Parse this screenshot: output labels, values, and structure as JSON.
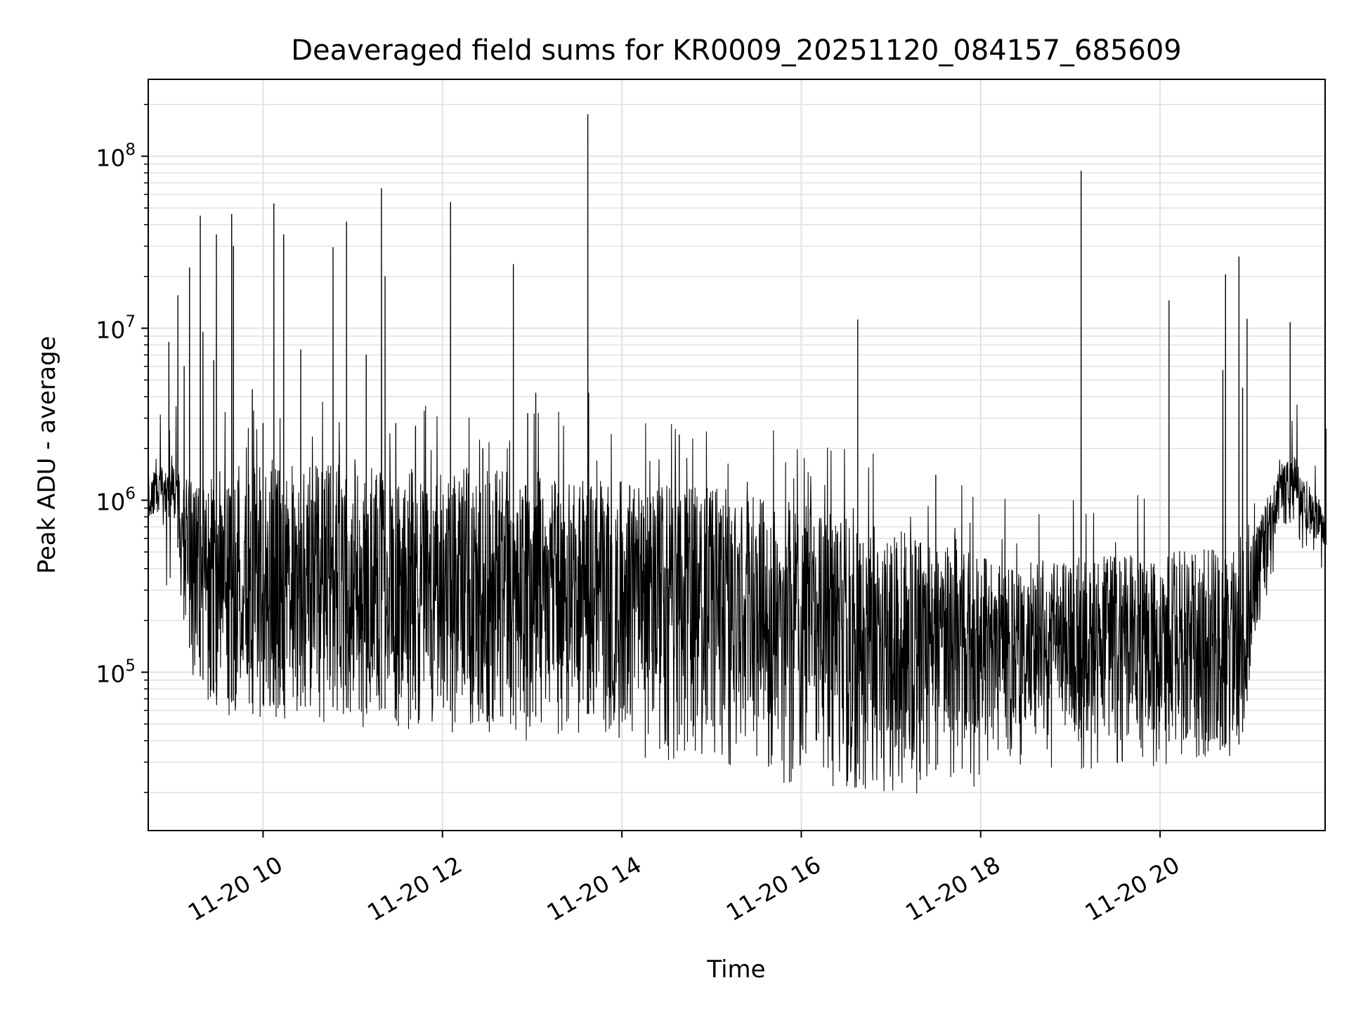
{
  "chart_data": {
    "type": "line",
    "title": "Deaveraged field sums for KR0009_20251120_084157_685609",
    "xlabel": "Time",
    "ylabel": "Peak ADU - average",
    "yscale": "log",
    "xlim": [
      "11-20 08:43",
      "11-20 21:50"
    ],
    "ylim": [
      12000,
      280000000
    ],
    "grid": true,
    "line_color": "#000000",
    "x_ticks": [
      "11-20 10",
      "11-20 12",
      "11-20 14",
      "11-20 16",
      "11-20 18",
      "11-20 20"
    ],
    "x_tick_hours": [
      10,
      12,
      14,
      16,
      18,
      20
    ],
    "y_ticks": [
      {
        "value": 100000,
        "base": "10",
        "exp": "5"
      },
      {
        "value": 1000000,
        "base": "10",
        "exp": "6"
      },
      {
        "value": 10000000,
        "base": "10",
        "exp": "7"
      },
      {
        "value": 100000000,
        "base": "10",
        "exp": "8"
      }
    ],
    "envelope": {
      "hours": [
        8.72,
        9.0,
        9.1,
        9.2,
        9.5,
        10.0,
        11.0,
        12.0,
        13.0,
        13.6,
        14.0,
        15.0,
        16.0,
        17.0,
        17.5,
        18.0,
        18.2,
        19.0,
        20.0,
        20.5,
        20.9,
        21.1,
        21.35,
        21.5,
        21.7,
        21.85
      ],
      "high": [
        1500000,
        1600000,
        1300000,
        1500000,
        1600000,
        1600000,
        1600000,
        1550000,
        1500000,
        1300000,
        1300000,
        1200000,
        950000,
        700000,
        550000,
        480000,
        420000,
        480000,
        500000,
        520000,
        520000,
        800000,
        1600000,
        1800000,
        1100000,
        1000000
      ],
      "low": [
        800000,
        800000,
        350000,
        110000,
        70000,
        65000,
        62000,
        60000,
        55000,
        58000,
        50000,
        40000,
        32000,
        28000,
        27000,
        45000,
        45000,
        42000,
        40000,
        38000,
        38000,
        200000,
        900000,
        900000,
        600000,
        550000
      ],
      "min": [
        220000,
        300000,
        220000,
        90000,
        55000,
        55000,
        48000,
        45000,
        38000,
        45000,
        34000,
        26000,
        22000,
        20000,
        19000,
        22000,
        30000,
        26000,
        28000,
        30000,
        33000,
        120000,
        700000,
        700000,
        350000,
        350000
      ]
    },
    "spikes": [
      {
        "hour": 8.95,
        "value": 8300000
      },
      {
        "hour": 9.05,
        "value": 15500000
      },
      {
        "hour": 9.12,
        "value": 6000000
      },
      {
        "hour": 9.18,
        "value": 22500000
      },
      {
        "hour": 9.3,
        "value": 45000000
      },
      {
        "hour": 9.33,
        "value": 9500000
      },
      {
        "hour": 9.45,
        "value": 6500000
      },
      {
        "hour": 9.48,
        "value": 35000000
      },
      {
        "hour": 9.65,
        "value": 46000000
      },
      {
        "hour": 9.67,
        "value": 30000000
      },
      {
        "hour": 9.88,
        "value": 4400000
      },
      {
        "hour": 10.0,
        "value": 2800000
      },
      {
        "hour": 10.12,
        "value": 53000000
      },
      {
        "hour": 10.23,
        "value": 35000000
      },
      {
        "hour": 10.42,
        "value": 7500000
      },
      {
        "hour": 10.78,
        "value": 29500000
      },
      {
        "hour": 10.93,
        "value": 41500000
      },
      {
        "hour": 11.15,
        "value": 7000000
      },
      {
        "hour": 11.32,
        "value": 65000000
      },
      {
        "hour": 11.36,
        "value": 20000000
      },
      {
        "hour": 11.48,
        "value": 2800000
      },
      {
        "hour": 11.7,
        "value": 2700000
      },
      {
        "hour": 12.09,
        "value": 54000000
      },
      {
        "hour": 12.45,
        "value": 2000000
      },
      {
        "hour": 12.79,
        "value": 23500000
      },
      {
        "hour": 12.95,
        "value": 3200000
      },
      {
        "hour": 13.04,
        "value": 4200000
      },
      {
        "hour": 13.62,
        "value": 175000000
      },
      {
        "hour": 13.63,
        "value": 4200000
      },
      {
        "hour": 14.64,
        "value": 2400000
      },
      {
        "hour": 16.63,
        "value": 11200000
      },
      {
        "hour": 17.5,
        "value": 1400000
      },
      {
        "hour": 19.12,
        "value": 82000000
      },
      {
        "hour": 20.1,
        "value": 14500000
      },
      {
        "hour": 20.7,
        "value": 5700000
      },
      {
        "hour": 20.73,
        "value": 20500000
      },
      {
        "hour": 20.88,
        "value": 26000000
      },
      {
        "hour": 20.92,
        "value": 4500000
      },
      {
        "hour": 20.97,
        "value": 11300000
      },
      {
        "hour": 21.45,
        "value": 10800000
      },
      {
        "hour": 21.85,
        "value": 2600000
      }
    ]
  }
}
